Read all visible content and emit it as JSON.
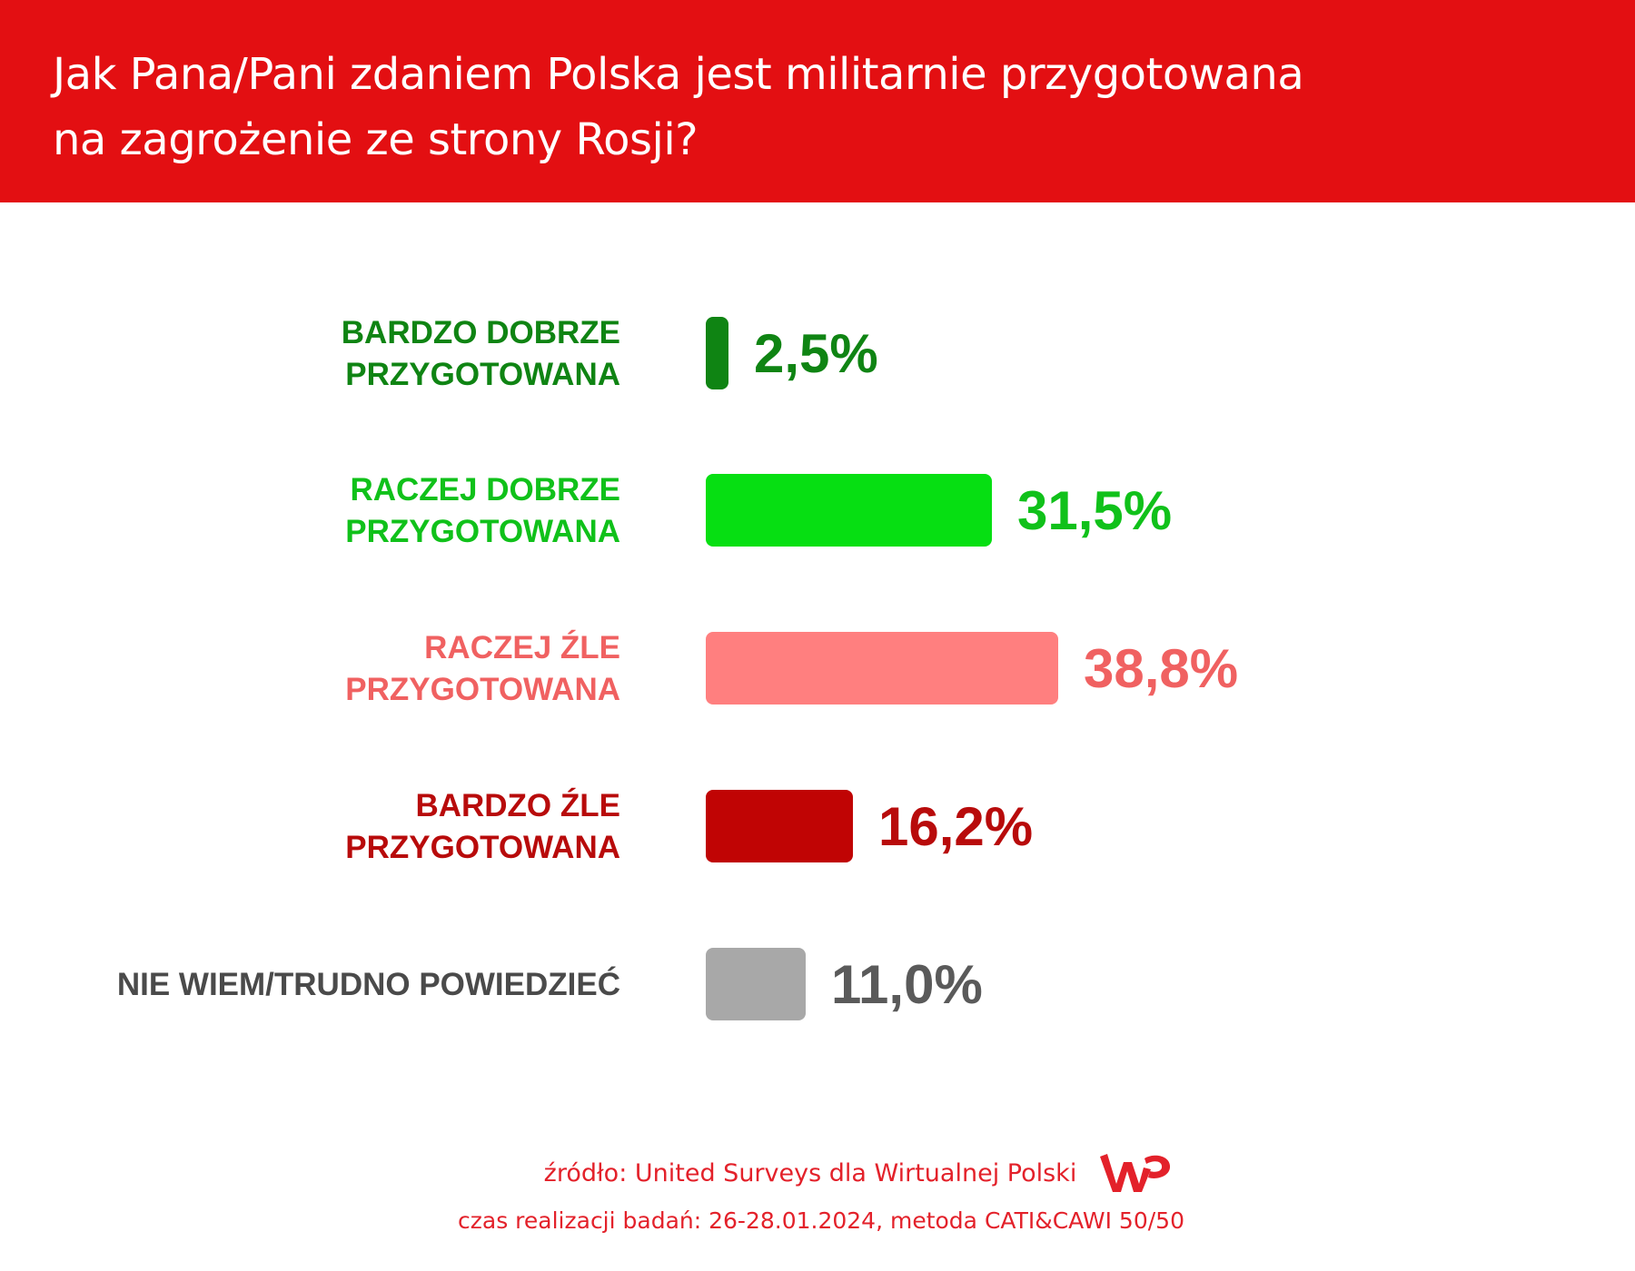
{
  "header": {
    "title_line1": "Jak Pana/Pani zdaniem Polska jest militarnie przygotowana",
    "title_line2": "na zagrożenie ze strony Rosji?",
    "background_color": "#e30f12"
  },
  "chart_data": {
    "type": "bar",
    "orientation": "horizontal",
    "title": "Jak Pana/Pani zdaniem Polska jest militarnie przygotowana na zagrożenie ze strony Rosji?",
    "unit": "%",
    "categories": [
      [
        "BARDZO DOBRZE",
        "PRZYGOTOWANA"
      ],
      [
        "RACZEJ DOBRZE",
        "PRZYGOTOWANA"
      ],
      [
        "RACZEJ ŹLE",
        "PRZYGOTOWANA"
      ],
      [
        "BARDZO ŹLE",
        "PRZYGOTOWANA"
      ],
      [
        "NIE WIEM/TRUDNO POWIEDZIEĆ"
      ]
    ],
    "values": [
      2.5,
      31.5,
      38.8,
      16.2,
      11.0
    ],
    "value_labels": [
      "2,5%",
      "31,5%",
      "38,8%",
      "16,2%",
      "11,0%"
    ],
    "bar_colors": [
      "#0f8413",
      "#06df12",
      "#ff7f7f",
      "#c00404",
      "#a8a8a8"
    ],
    "label_colors": [
      "#0f8413",
      "#10c11a",
      "#f06161",
      "#b80b0b",
      "#4a4a4a"
    ],
    "value_colors": [
      "#0f8413",
      "#10c11a",
      "#f06161",
      "#b80b0b",
      "#5a5a5a"
    ],
    "grid": false,
    "legend": "none"
  },
  "footer": {
    "source": "źródło: United Surveys dla Wirtualnej Polski",
    "method": "czas realizacji badań: 26-28.01.2024, metoda CATI&CAWI 50/50",
    "logo": "wp-logo",
    "color": "#e3212a"
  }
}
